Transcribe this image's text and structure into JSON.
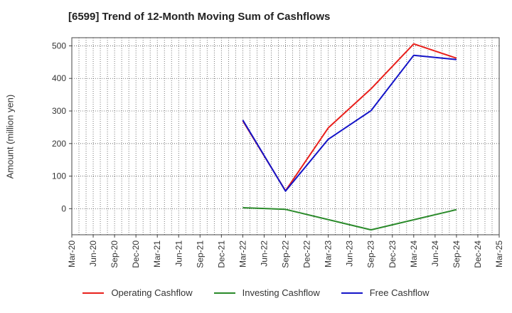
{
  "chart_data": {
    "type": "line",
    "title": "[6599]  Trend of 12-Month Moving Sum of Cashflows",
    "ylabel": "Amount (million yen)",
    "xlabel": "",
    "categories": [
      "Mar-20",
      "Jun-20",
      "Sep-20",
      "Dec-20",
      "Mar-21",
      "Jun-21",
      "Sep-21",
      "Dec-21",
      "Mar-22",
      "Jun-22",
      "Sep-22",
      "Dec-22",
      "Mar-23",
      "Jun-23",
      "Sep-23",
      "Dec-23",
      "Mar-24",
      "Jun-24",
      "Sep-24",
      "Dec-24",
      "Mar-25"
    ],
    "ylim": [
      -80,
      525
    ],
    "yticks": [
      0,
      100,
      200,
      300,
      400,
      500
    ],
    "grid": true,
    "legend_position": "bottom",
    "series": [
      {
        "name": "Operating Cashflow",
        "color": "#e8201c",
        "values": [
          null,
          null,
          null,
          null,
          null,
          null,
          null,
          null,
          270,
          null,
          55,
          null,
          248,
          null,
          368,
          null,
          506,
          null,
          462,
          null,
          null
        ]
      },
      {
        "name": "Investing Cashflow",
        "color": "#2a8a2a",
        "values": [
          null,
          null,
          null,
          null,
          null,
          null,
          null,
          null,
          3,
          null,
          -2,
          null,
          null,
          null,
          -65,
          null,
          null,
          null,
          -3,
          null,
          null
        ]
      },
      {
        "name": "Free Cashflow",
        "color": "#1414c8",
        "values": [
          null,
          null,
          null,
          null,
          null,
          null,
          null,
          null,
          272,
          null,
          54,
          null,
          213,
          null,
          301,
          null,
          471,
          null,
          458,
          null,
          null
        ]
      }
    ]
  }
}
